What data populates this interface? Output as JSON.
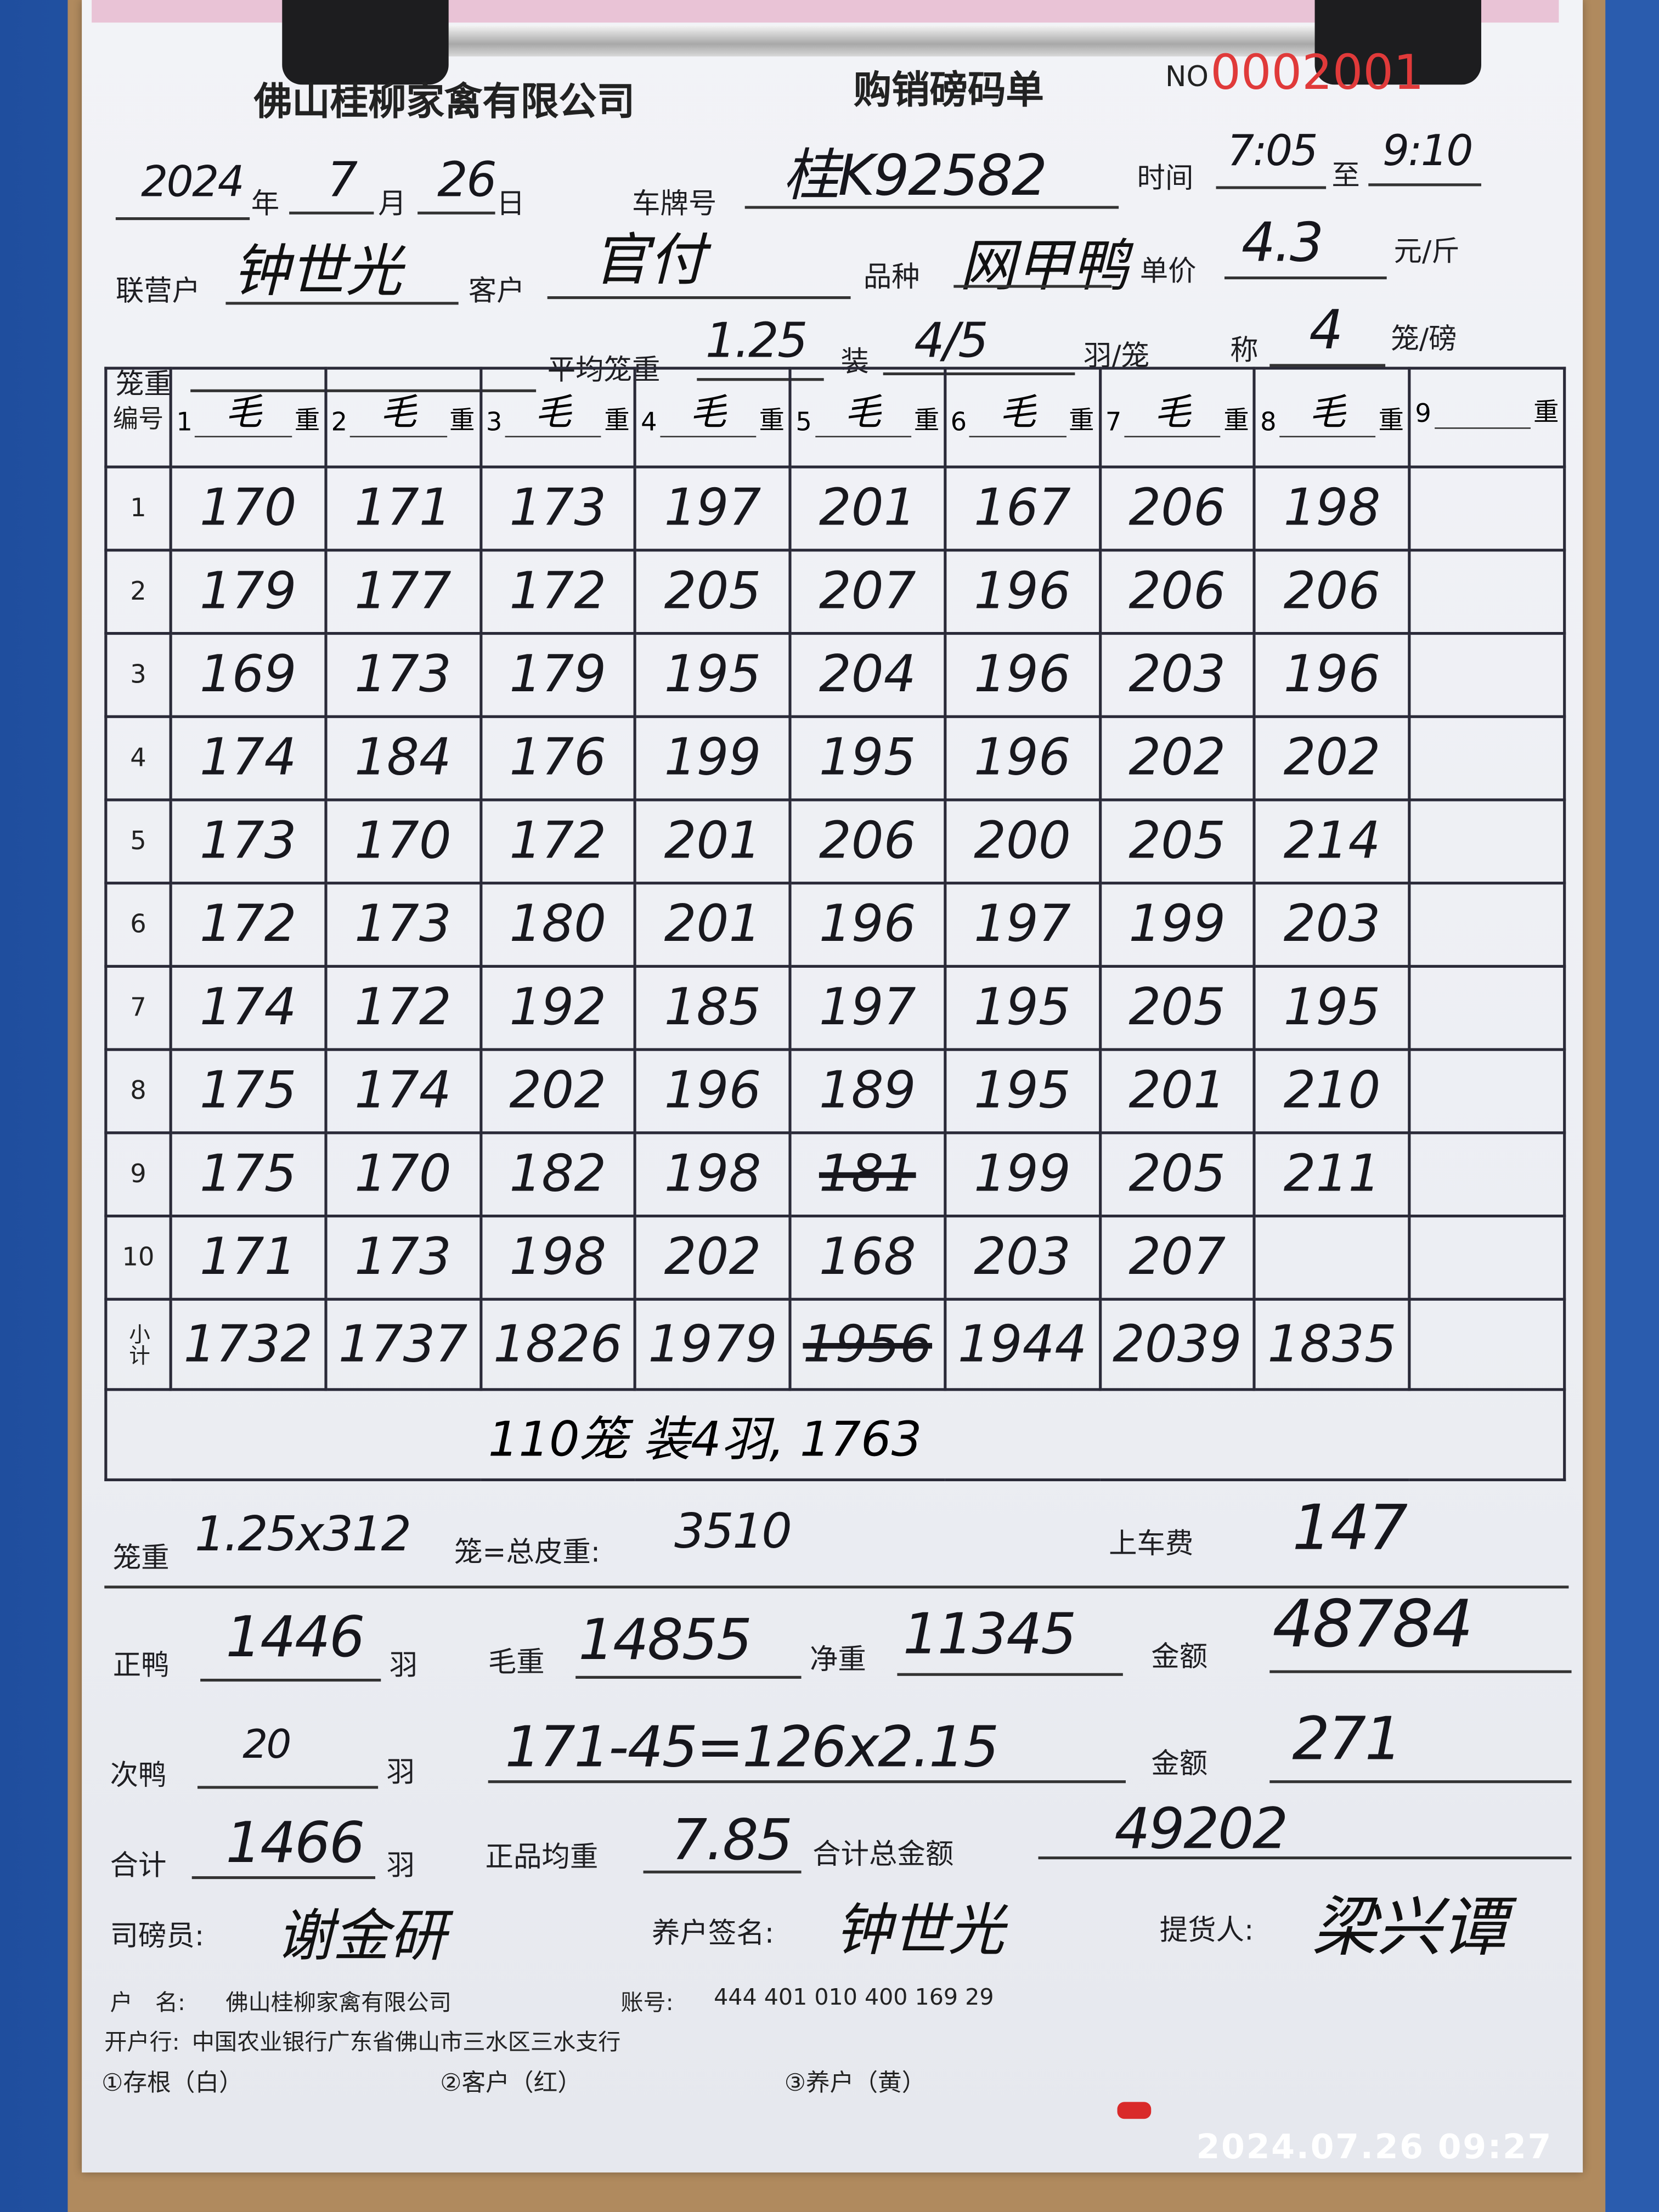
{
  "header": {
    "company": "佛山桂柳家禽有限公司",
    "form_title": "购销磅码单",
    "serial_prefix": "NO",
    "serial_number": "0002001"
  },
  "info": {
    "year": "2024",
    "year_label": "年",
    "month": "7",
    "month_label": "月",
    "day": "26",
    "day_label": "日",
    "plate_label": "车牌号",
    "plate": "桂K92582",
    "time_label": "时间",
    "time_from": "7:05",
    "time_to_label": "至",
    "time_to": "9:10",
    "partner_label": "联营户",
    "partner": "钟世光",
    "customer_label": "客户",
    "customer": "官付",
    "variety_label": "品种",
    "variety": "网甲鸭",
    "unit_price_label": "单价",
    "unit_price": "4.3",
    "unit_price_unit": "元/斤",
    "cage_weight_label": "笼重",
    "cage_weight": "",
    "avg_cage_weight_label": "平均笼重",
    "avg_cage_weight": "1.25",
    "load_label": "装",
    "load": "4/5",
    "load_unit": "羽/笼",
    "weigh_label": "称",
    "weigh": "4",
    "weigh_unit": "笼/磅"
  },
  "table": {
    "index_header": "编号",
    "weight_label": "重",
    "columns": [
      {
        "no": "1",
        "mark": "毛"
      },
      {
        "no": "2",
        "mark": "毛"
      },
      {
        "no": "3",
        "mark": "毛"
      },
      {
        "no": "4",
        "mark": "毛"
      },
      {
        "no": "5",
        "mark": "毛"
      },
      {
        "no": "6",
        "mark": "毛"
      },
      {
        "no": "7",
        "mark": "毛"
      },
      {
        "no": "8",
        "mark": "毛"
      },
      {
        "no": "9",
        "mark": ""
      }
    ],
    "rows": [
      {
        "no": "1",
        "values": [
          "170",
          "171",
          "173",
          "197",
          "201",
          "167",
          "206",
          "198",
          ""
        ]
      },
      {
        "no": "2",
        "values": [
          "179",
          "177",
          "172",
          "205",
          "207",
          "196",
          "206",
          "206",
          ""
        ]
      },
      {
        "no": "3",
        "values": [
          "169",
          "173",
          "179",
          "195",
          "204",
          "196",
          "203",
          "196",
          ""
        ]
      },
      {
        "no": "4",
        "values": [
          "174",
          "184",
          "176",
          "199",
          "195",
          "196",
          "202",
          "202",
          ""
        ]
      },
      {
        "no": "5",
        "values": [
          "173",
          "170",
          "172",
          "201",
          "206",
          "200",
          "205",
          "214",
          ""
        ]
      },
      {
        "no": "6",
        "values": [
          "172",
          "173",
          "180",
          "201",
          "196",
          "197",
          "199",
          "203",
          ""
        ]
      },
      {
        "no": "7",
        "values": [
          "174",
          "172",
          "192",
          "185",
          "197",
          "195",
          "205",
          "195",
          ""
        ]
      },
      {
        "no": "8",
        "values": [
          "175",
          "174",
          "202",
          "196",
          "189",
          "195",
          "201",
          "210",
          ""
        ]
      },
      {
        "no": "9",
        "values": [
          "175",
          "170",
          "182",
          "198",
          "181",
          "199",
          "205",
          "211",
          ""
        ],
        "struck": [
          4
        ]
      },
      {
        "no": "10",
        "values": [
          "171",
          "173",
          "198",
          "202",
          "168",
          "203",
          "207",
          "",
          ""
        ]
      }
    ],
    "subtotal_label": "小计",
    "subtotals": [
      "1732",
      "1737",
      "1826",
      "1979",
      "1956",
      "1944",
      "2039",
      "1835",
      ""
    ],
    "subtotal_struck": [
      4
    ],
    "note": "110笼 装4羽, 1763"
  },
  "summary": {
    "cage_label": "笼重",
    "cage_calc": "1.25x312",
    "tare_label": "笼=总皮重:",
    "tare": "3510",
    "loading_fee_label": "上车费",
    "loading_fee": "147",
    "good_label": "正鸭",
    "good_count": "1446",
    "good_unit": "羽",
    "gross_label": "毛重",
    "gross": "14855",
    "net_label": "净重",
    "net": "11345",
    "amount_label": "金额",
    "amount": "48784",
    "second_label": "次鸭",
    "second_count": "20",
    "second_unit": "羽",
    "second_calc": "171-45=126x2.15",
    "amount2_label": "金额",
    "amount2": "271",
    "total_label": "合计",
    "total_count": "1466",
    "total_unit": "羽",
    "avg_label": "正品均重",
    "avg": "7.85",
    "grand_label": "合计总金额",
    "grand": "49202",
    "weigher_label": "司磅员:",
    "weigher": "谢金研",
    "farmer_label": "养户签名:",
    "farmer": "钟世光",
    "picker_label": "提货人:",
    "picker": "梁兴谭"
  },
  "footer": {
    "account_name_label": "户　名:",
    "account_name": "佛山桂柳家禽有限公司",
    "account_no_label": "账号:",
    "account_no": "444 401 010 400 169 29",
    "bank_label": "开户行:",
    "bank": "中国农业银行广东省佛山市三水区三水支行",
    "copy1": "①存根（白）",
    "copy2": "②客户（红）",
    "copy3": "③养户（黄）"
  },
  "photo_timestamp": "2024.07.26 09:27",
  "colors": {
    "background": "#2b5aa8",
    "serial": "#e03a3a",
    "paper": "#eceef3"
  }
}
